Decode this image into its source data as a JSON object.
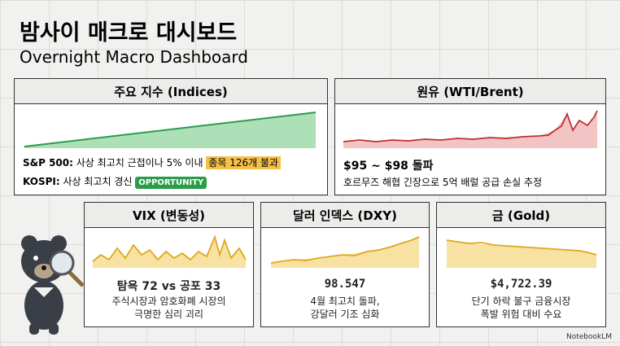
{
  "header": {
    "title": "밤사이 매크로 대시보드",
    "subtitle": "Overnight Macro Dashboard"
  },
  "panels": [
    {
      "title": "주요 지수 (Indices)",
      "lines": [
        {
          "label": "S&P 500:",
          "text": "사상 최고치 근접이나 5% 이내",
          "highlight": "종목 126개 불과"
        },
        {
          "label": "KOSPI:",
          "text": "사상 최고치 경신",
          "badge": "OPPORTUNITY"
        }
      ]
    },
    {
      "title": "원유 (WTI/Brent)",
      "headline": "$95 ~ $98 돌파",
      "lines": [
        "호르무즈 해협 긴장으로 5억 배럴 공급 손실 추정"
      ]
    },
    {
      "title": "VIX (변동성)",
      "headline": "탐욕 72 vs 공포 33",
      "lines": [
        "주식시장과 암호화폐 시장의",
        "극명한 심리 괴리"
      ]
    },
    {
      "title": "달러 인덱스 (DXY)",
      "headline": "98.547",
      "lines": [
        "4월 최고치 돌파,",
        "강달러 기조 심화"
      ]
    },
    {
      "title": "금 (Gold)",
      "headline": "$4,722.39",
      "lines": [
        "단기 하락 불구 금융시장",
        "폭발 위험 대비 수요"
      ]
    }
  ],
  "footer": "NotebookLM"
}
